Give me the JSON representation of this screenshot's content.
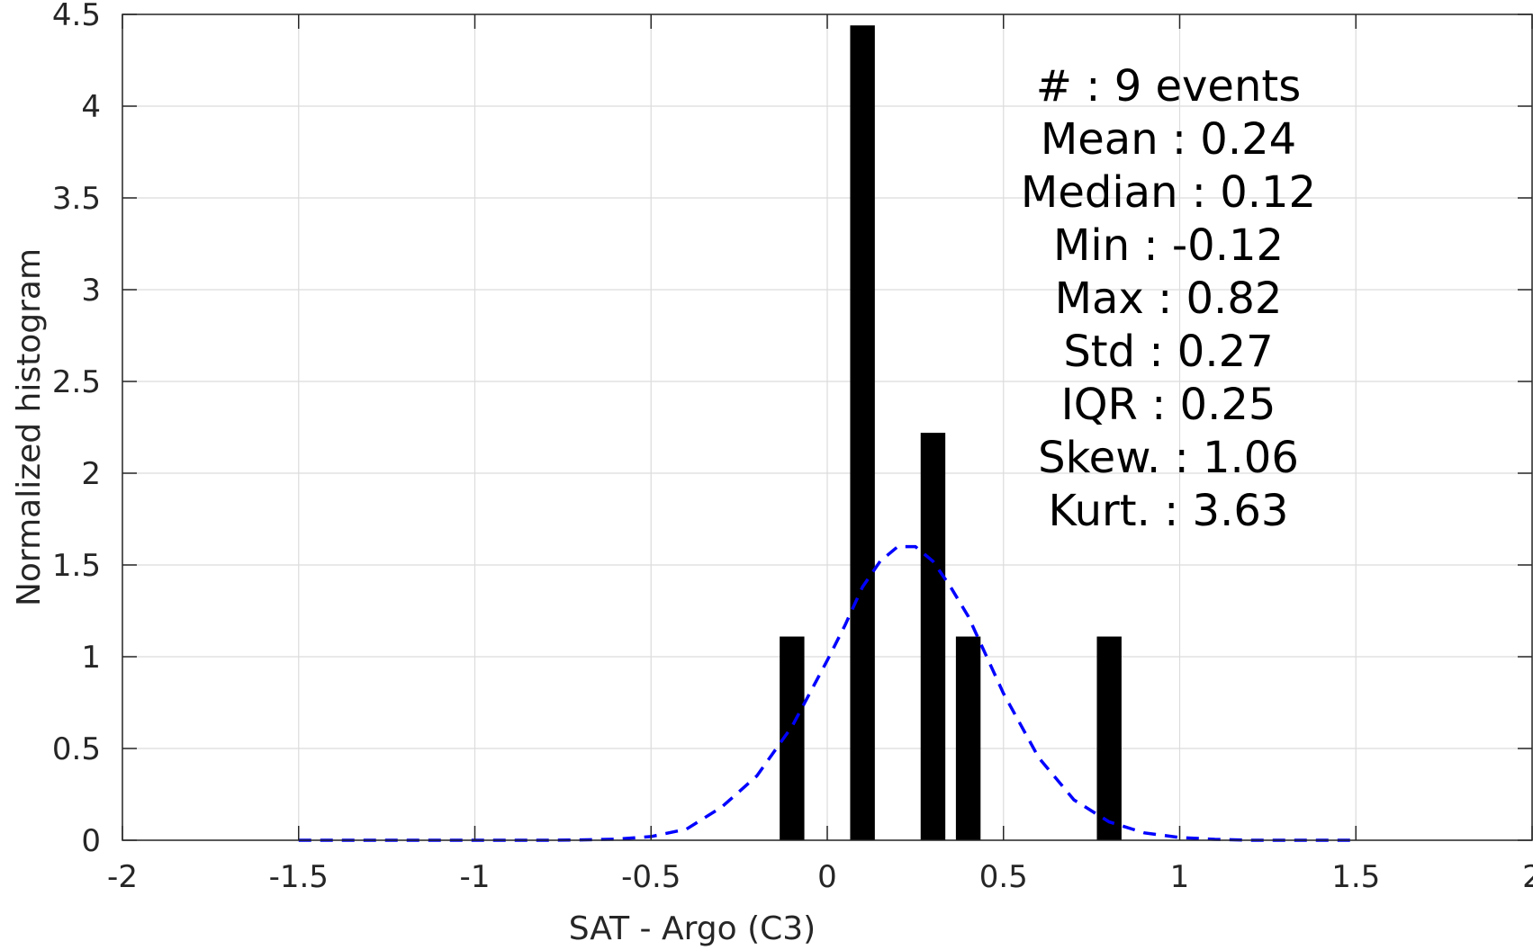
{
  "chart_data": {
    "type": "bar",
    "xlabel": "SAT - Argo (C3)",
    "ylabel": "Normalized histogram",
    "xlim": [
      -2,
      2
    ],
    "ylim": [
      0,
      4.5
    ],
    "grid": true,
    "x_ticks": [
      -2,
      -1.5,
      -1,
      -0.5,
      0,
      0.5,
      1,
      1.5,
      2
    ],
    "x_tick_labels": [
      "-2",
      "-1.5",
      "-1",
      "-0.5",
      "0",
      "0.5",
      "1",
      "1.5",
      "2"
    ],
    "y_ticks": [
      0,
      0.5,
      1,
      1.5,
      2,
      2.5,
      3,
      3.5,
      4,
      4.5
    ],
    "y_tick_labels": [
      "0",
      "0.5",
      "1",
      "1.5",
      "2",
      "2.5",
      "3",
      "3.5",
      "4",
      "4.5"
    ],
    "bar_width": 0.07,
    "bars": [
      {
        "x": -0.1,
        "value": 1.11
      },
      {
        "x": 0.1,
        "value": 4.44
      },
      {
        "x": 0.3,
        "value": 2.22
      },
      {
        "x": 0.4,
        "value": 1.11
      },
      {
        "x": 0.8,
        "value": 1.11
      }
    ],
    "fit_curve": {
      "style": "dashed",
      "color": "#0000ff",
      "x": [
        -1.5,
        -1.4,
        -1.3,
        -1.2,
        -1.1,
        -1.0,
        -0.9,
        -0.8,
        -0.7,
        -0.6,
        -0.5,
        -0.4,
        -0.3,
        -0.2,
        -0.1,
        0.0,
        0.05,
        0.1,
        0.15,
        0.2,
        0.25,
        0.3,
        0.35,
        0.4,
        0.5,
        0.6,
        0.7,
        0.8,
        0.9,
        1.0,
        1.1,
        1.2,
        1.3,
        1.4,
        1.5
      ],
      "y": [
        0.0,
        0.0,
        0.0,
        0.0,
        0.0,
        0.0,
        0.0,
        0.0,
        0.002,
        0.006,
        0.02,
        0.06,
        0.18,
        0.35,
        0.62,
        0.98,
        1.17,
        1.38,
        1.52,
        1.6,
        1.6,
        1.52,
        1.38,
        1.22,
        0.8,
        0.45,
        0.22,
        0.1,
        0.04,
        0.015,
        0.005,
        0.0,
        0.0,
        0.0,
        0.0
      ]
    },
    "bar_color": "#000000",
    "annotations": [
      "#  : 9 events",
      "Mean : 0.24",
      "Median : 0.12",
      "Min : -0.12",
      "Max : 0.82",
      "Std : 0.27",
      "IQR : 0.25",
      "Skew. : 1.06",
      "Kurt. : 3.63"
    ]
  }
}
